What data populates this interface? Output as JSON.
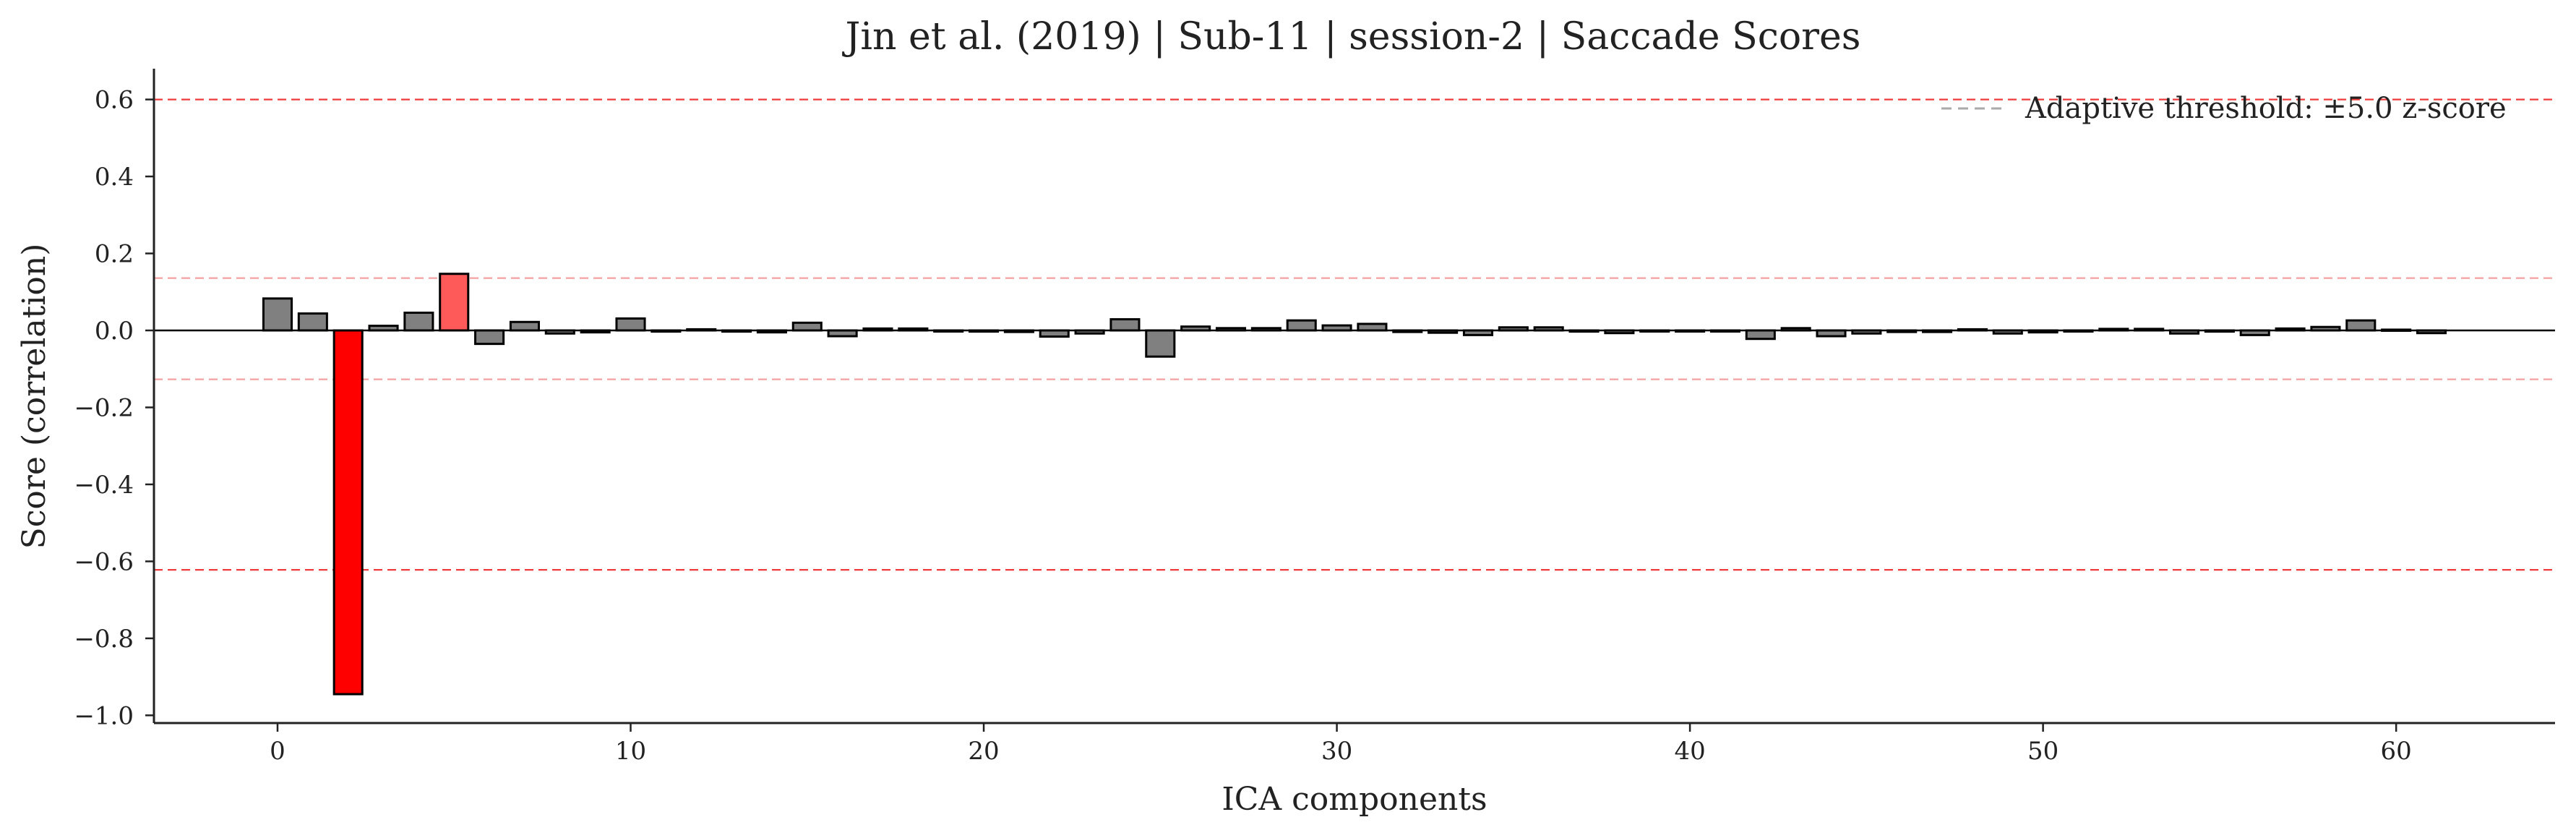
{
  "chart_data": {
    "type": "bar",
    "title": "Jin et al. (2019) | Sub-11 | session-2 | Saccade Scores",
    "xlabel": "ICA components",
    "ylabel": "Score (correlation)",
    "xlim": [
      -3.5,
      64.5
    ],
    "ylim": [
      -1.02,
      0.68
    ],
    "xticks": [
      0,
      10,
      20,
      30,
      40,
      50,
      60
    ],
    "xtick_labels": [
      "0",
      "10",
      "20",
      "30",
      "40",
      "50",
      "60"
    ],
    "yticks": [
      0.6,
      0.4,
      0.2,
      0.0,
      -0.2,
      -0.4,
      -0.6,
      -0.8,
      -1.0
    ],
    "ytick_labels": [
      "0.6",
      "0.4",
      "0.2",
      "0.0",
      "−0.2",
      "−0.4",
      "−0.6",
      "−0.8",
      "−1.0"
    ],
    "x": [
      0,
      1,
      2,
      3,
      4,
      5,
      6,
      7,
      8,
      9,
      10,
      11,
      12,
      13,
      14,
      15,
      16,
      17,
      18,
      19,
      20,
      21,
      22,
      23,
      24,
      25,
      26,
      27,
      28,
      29,
      30,
      31,
      32,
      33,
      34,
      35,
      36,
      37,
      38,
      39,
      40,
      41,
      42,
      43,
      44,
      45,
      46,
      47,
      48,
      49,
      50,
      51,
      52,
      53,
      54,
      55,
      56,
      57,
      58,
      59,
      60,
      61
    ],
    "values": [
      0.083,
      0.044,
      -0.945,
      0.012,
      0.046,
      0.147,
      -0.035,
      0.022,
      -0.008,
      -0.005,
      0.031,
      -0.003,
      0.003,
      -0.003,
      -0.005,
      0.02,
      -0.015,
      0.005,
      0.005,
      -0.002,
      -0.003,
      -0.004,
      -0.016,
      -0.008,
      0.029,
      -0.068,
      0.01,
      0.006,
      0.006,
      0.026,
      0.013,
      0.017,
      -0.004,
      -0.006,
      -0.012,
      0.008,
      0.008,
      -0.003,
      -0.007,
      -0.002,
      -0.002,
      -0.002,
      -0.022,
      0.006,
      -0.015,
      -0.008,
      -0.004,
      -0.004,
      0.003,
      -0.008,
      -0.005,
      -0.002,
      0.004,
      0.004,
      -0.008,
      -0.003,
      -0.012,
      0.005,
      0.009,
      0.026,
      0.002,
      -0.007
    ],
    "bar_colors": {
      "default": "#808080",
      "highlighted": {
        "2": "#ff0000",
        "5": "#ff5a5a"
      },
      "edge": "#000000"
    },
    "threshold_lines": {
      "outer": [
        0.6,
        -0.622
      ],
      "inner": [
        0.136,
        -0.127
      ],
      "outer_color": "#ee3b3b",
      "inner_color": "#f4a0a0",
      "style": "dashed"
    },
    "zero_line": {
      "y": 0.0,
      "color": "#000000"
    },
    "legend": {
      "placement": "top-right",
      "entries": [
        {
          "label": "Adaptive threshold: ±5.0 z-score",
          "color": "#aaaaaa",
          "style": "dashed"
        }
      ]
    },
    "grid": false
  }
}
